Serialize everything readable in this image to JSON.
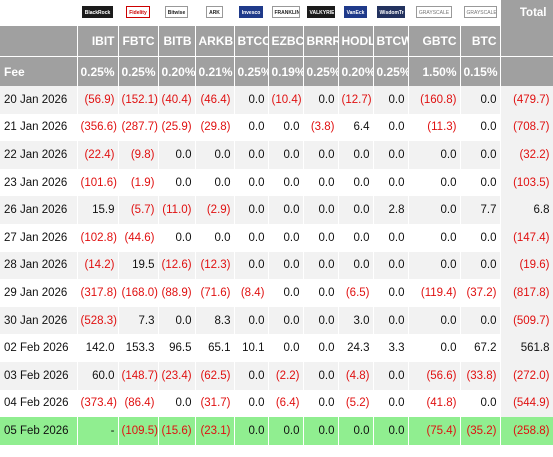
{
  "columns": [
    {
      "ticker": "IBIT",
      "fee": "0.25%",
      "brand": "BlackRock",
      "style": "dark"
    },
    {
      "ticker": "FBTC",
      "fee": "0.25%",
      "brand": "Fidelity",
      "style": "red"
    },
    {
      "ticker": "BITB",
      "fee": "0.20%",
      "brand": "Bitwise",
      "style": ""
    },
    {
      "ticker": "ARKB",
      "fee": "0.21%",
      "brand": "ARK",
      "style": ""
    },
    {
      "ticker": "BTCO",
      "fee": "0.25%",
      "brand": "Invesco",
      "style": "blue"
    },
    {
      "ticker": "EZBC",
      "fee": "0.19%",
      "brand": "FRANKLIN TEMPLETON",
      "style": ""
    },
    {
      "ticker": "BRRR",
      "fee": "0.25%",
      "brand": "VALKYRIE",
      "style": "dark"
    },
    {
      "ticker": "HODL",
      "fee": "0.20%",
      "brand": "VanEck",
      "style": "blue"
    },
    {
      "ticker": "BTCW",
      "fee": "0.25%",
      "brand": "WisdomTree",
      "style": "navy"
    },
    {
      "ticker": "GBTC",
      "fee": "1.50%",
      "brand": "GRAYSCALE",
      "style": "grey"
    },
    {
      "ticker": "BTC",
      "fee": "0.15%",
      "brand": "GRAYSCALE",
      "style": "grey"
    }
  ],
  "header": {
    "total_label": "Total",
    "fee_label": "Fee"
  },
  "rows": [
    {
      "date": "20 Jan 2026",
      "values": [
        "(56.9)",
        "(152.1)",
        "(40.4)",
        "(46.4)",
        "0.0",
        "(10.4)",
        "0.0",
        "(12.7)",
        "0.0",
        "(160.8)",
        "0.0"
      ],
      "total": "(479.7)"
    },
    {
      "date": "21 Jan 2026",
      "values": [
        "(356.6)",
        "(287.7)",
        "(25.9)",
        "(29.8)",
        "0.0",
        "0.0",
        "(3.8)",
        "6.4",
        "0.0",
        "(11.3)",
        "0.0"
      ],
      "total": "(708.7)"
    },
    {
      "date": "22 Jan 2026",
      "values": [
        "(22.4)",
        "(9.8)",
        "0.0",
        "0.0",
        "0.0",
        "0.0",
        "0.0",
        "0.0",
        "0.0",
        "0.0",
        "0.0"
      ],
      "total": "(32.2)"
    },
    {
      "date": "23 Jan 2026",
      "values": [
        "(101.6)",
        "(1.9)",
        "0.0",
        "0.0",
        "0.0",
        "0.0",
        "0.0",
        "0.0",
        "0.0",
        "0.0",
        "0.0"
      ],
      "total": "(103.5)"
    },
    {
      "date": "26 Jan 2026",
      "values": [
        "15.9",
        "(5.7)",
        "(11.0)",
        "(2.9)",
        "0.0",
        "0.0",
        "0.0",
        "0.0",
        "2.8",
        "0.0",
        "7.7"
      ],
      "total": "6.8"
    },
    {
      "date": "27 Jan 2026",
      "values": [
        "(102.8)",
        "(44.6)",
        "0.0",
        "0.0",
        "0.0",
        "0.0",
        "0.0",
        "0.0",
        "0.0",
        "0.0",
        "0.0"
      ],
      "total": "(147.4)"
    },
    {
      "date": "28 Jan 2026",
      "values": [
        "(14.2)",
        "19.5",
        "(12.6)",
        "(12.3)",
        "0.0",
        "0.0",
        "0.0",
        "0.0",
        "0.0",
        "0.0",
        "0.0"
      ],
      "total": "(19.6)"
    },
    {
      "date": "29 Jan 2026",
      "values": [
        "(317.8)",
        "(168.0)",
        "(88.9)",
        "(71.6)",
        "(8.4)",
        "0.0",
        "0.0",
        "(6.5)",
        "0.0",
        "(119.4)",
        "(37.2)"
      ],
      "total": "(817.8)"
    },
    {
      "date": "30 Jan 2026",
      "values": [
        "(528.3)",
        "7.3",
        "0.0",
        "8.3",
        "0.0",
        "0.0",
        "0.0",
        "3.0",
        "0.0",
        "0.0",
        "0.0"
      ],
      "total": "(509.7)"
    },
    {
      "date": "02 Feb 2026",
      "values": [
        "142.0",
        "153.3",
        "96.5",
        "65.1",
        "10.1",
        "0.0",
        "0.0",
        "24.3",
        "3.3",
        "0.0",
        "67.2"
      ],
      "total": "561.8"
    },
    {
      "date": "03 Feb 2026",
      "values": [
        "60.0",
        "(148.7)",
        "(23.4)",
        "(62.5)",
        "0.0",
        "(2.2)",
        "0.0",
        "(4.8)",
        "0.0",
        "(56.6)",
        "(33.8)"
      ],
      "total": "(272.0)"
    },
    {
      "date": "04 Feb 2026",
      "values": [
        "(373.4)",
        "(86.4)",
        "0.0",
        "(31.7)",
        "0.0",
        "(6.4)",
        "0.0",
        "(5.2)",
        "0.0",
        "(41.8)",
        "0.0"
      ],
      "total": "(544.9)"
    },
    {
      "date": "05 Feb 2026",
      "values": [
        "-",
        "(109.5)",
        "(15.6)",
        "(23.1)",
        "0.0",
        "0.0",
        "0.0",
        "0.0",
        "0.0",
        "(75.4)",
        "(35.2)"
      ],
      "total": "(258.8)",
      "highlight": true
    }
  ]
}
